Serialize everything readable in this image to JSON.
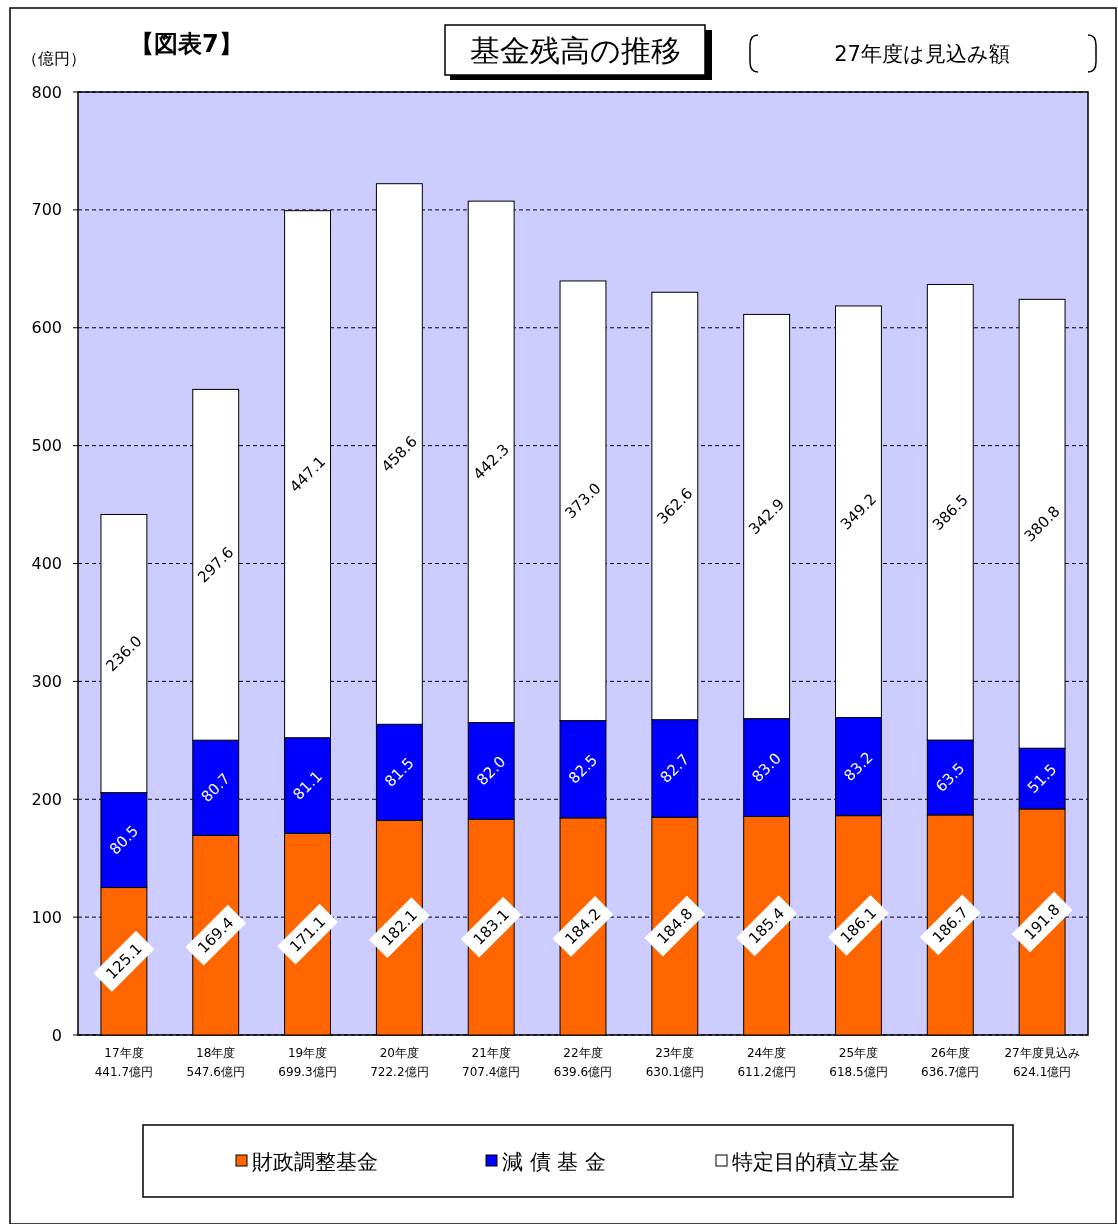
{
  "chart_data": {
    "type": "bar",
    "title": "基金残高の推移",
    "subtitle": "【図表7】",
    "ylabel": "（億円）",
    "annotations": [
      "27年度は見込み額"
    ],
    "categories": [
      "17年度\n441.7億円",
      "18年度\n547.6億円",
      "19年度\n699.3億円",
      "20年度\n722.2億円",
      "21年度\n707.4億円",
      "22年度\n639.6億円",
      "23年度\n630.1億円",
      "24年度\n611.2億円",
      "25年度\n618.5億円",
      "26年度\n636.7億円",
      "27年度見込み\n624.1億円"
    ],
    "stacked": true,
    "ylim": [
      0,
      800
    ],
    "yticks": [
      0,
      100,
      200,
      300,
      400,
      500,
      600,
      700,
      800
    ],
    "grid": "y",
    "legend": "bottom",
    "series": [
      {
        "name": "財政調整基金",
        "color": "#ff6600",
        "values": [
          125.1,
          169.4,
          171.1,
          182.1,
          183.1,
          184.2,
          184.8,
          185.4,
          186.1,
          186.7,
          191.8
        ],
        "value_labels": [
          "125.1",
          "169.4",
          "171.1",
          "182.1",
          "183.1",
          "184.2",
          "184.8",
          "185.4",
          "186.1",
          "186.7",
          "191.8"
        ]
      },
      {
        "name": "減 債 基 金",
        "color": "#0000ff",
        "values": [
          80.5,
          80.7,
          81.1,
          81.5,
          82.0,
          82.5,
          82.7,
          83.0,
          83.2,
          63.5,
          51.5
        ],
        "value_labels": [
          "80.5",
          "80.7",
          "81.1",
          "81.5",
          "82.0",
          "82.5",
          "82.7",
          "83.0",
          "83.2",
          "63.5",
          "51.5"
        ]
      },
      {
        "name": "特定目的積立基金",
        "color": "#ffffff",
        "values": [
          236.0,
          297.6,
          447.1,
          458.6,
          442.3,
          373.0,
          362.6,
          342.9,
          349.2,
          386.5,
          380.8
        ],
        "value_labels": [
          "236.0",
          "297.6",
          "447.1",
          "458.6",
          "442.3",
          "373.0",
          "362.6",
          "342.9",
          "349.2",
          "386.5",
          "380.8"
        ]
      }
    ]
  }
}
